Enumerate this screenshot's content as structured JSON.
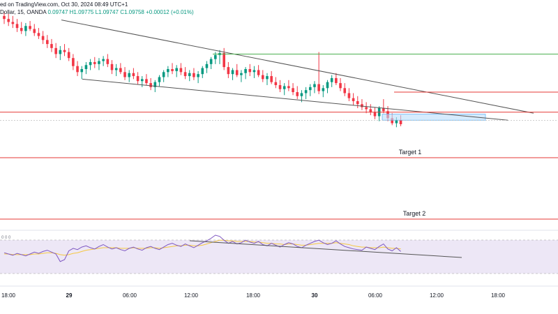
{
  "header": {
    "published": "ed on TradingView.com, Oct 30, 2024 08:49 UTC+1",
    "symbol": "Dollar, 15, OANDA",
    "open": "0.09747",
    "high": "H1.09775",
    "low": "L1.09747",
    "close": "C1.09758",
    "change": "+0.00012 (+0.01%)"
  },
  "colors": {
    "bull": "#089981",
    "bear": "#f23645",
    "trendline": "#555555",
    "resistance": "#4caf50",
    "level": "#e53935",
    "zone_fill": "#bbdefb",
    "rsi_band": "#ede7f6",
    "rsi_line": "#7e57c2",
    "rsi_ma": "#f5c842"
  },
  "chart_data": [
    {
      "type": "candlestick",
      "title": "",
      "x_axis_ticks": [
        "18:00",
        "29",
        "06:00",
        "12:00",
        "18:00",
        "30",
        "06:00",
        "12:00",
        "18:00"
      ],
      "annotations": [
        {
          "label": "Target 1",
          "kind": "horizontal-level"
        },
        {
          "label": "Target 2",
          "kind": "horizontal-level"
        }
      ],
      "series": [
        {
          "values": [
            [
              1.0998,
              1.1001,
              1.099,
              1.0995
            ],
            [
              1.0995,
              1.1,
              1.0988,
              1.0992
            ],
            [
              1.0992,
              1.0998,
              1.0986,
              1.099
            ],
            [
              1.099,
              1.0995,
              1.0982,
              1.0986
            ],
            [
              1.0986,
              1.0992,
              1.098,
              1.0983
            ],
            [
              1.0983,
              1.0991,
              1.0978,
              1.0988
            ],
            [
              1.0988,
              1.0993,
              1.0983,
              1.0985
            ],
            [
              1.0985,
              1.099,
              1.0978,
              1.0981
            ],
            [
              1.0981,
              1.0986,
              1.0975,
              1.0978
            ],
            [
              1.0978,
              1.0983,
              1.097,
              1.0974
            ],
            [
              1.0974,
              1.0979,
              1.0966,
              1.097
            ],
            [
              1.097,
              1.0975,
              1.0962,
              1.0966
            ],
            [
              1.0966,
              1.0971,
              1.0956,
              1.096
            ],
            [
              1.096,
              1.0968,
              1.0954,
              1.0964
            ],
            [
              1.0964,
              1.097,
              1.0958,
              1.0962
            ],
            [
              1.0962,
              1.0966,
              1.0953,
              1.0956
            ],
            [
              1.0956,
              1.096,
              1.0944,
              1.0948
            ],
            [
              1.0948,
              1.0953,
              1.0938,
              1.0942
            ],
            [
              1.0942,
              1.0948,
              1.0935,
              1.0945
            ],
            [
              1.0945,
              1.0952,
              1.094,
              1.0949
            ],
            [
              1.0949,
              1.0955,
              1.0944,
              1.0952
            ],
            [
              1.0952,
              1.0957,
              1.0946,
              1.095
            ],
            [
              1.095,
              1.0956,
              1.0944,
              1.0953
            ],
            [
              1.0953,
              1.0958,
              1.0948,
              1.0955
            ],
            [
              1.0955,
              1.096,
              1.0947,
              1.095
            ],
            [
              1.095,
              1.0954,
              1.094,
              1.0944
            ],
            [
              1.0944,
              1.095,
              1.0938,
              1.0946
            ],
            [
              1.0946,
              1.0951,
              1.094,
              1.0942
            ],
            [
              1.0942,
              1.0947,
              1.0934,
              1.0937
            ],
            [
              1.0937,
              1.0944,
              1.0932,
              1.0941
            ],
            [
              1.0941,
              1.0946,
              1.0935,
              1.0938
            ],
            [
              1.0938,
              1.0942,
              1.093,
              1.0933
            ],
            [
              1.0933,
              1.0938,
              1.0927,
              1.0935
            ],
            [
              1.0935,
              1.094,
              1.0929,
              1.0931
            ],
            [
              1.0931,
              1.0936,
              1.0924,
              1.0927
            ],
            [
              1.0927,
              1.0934,
              1.0922,
              1.0932
            ],
            [
              1.0932,
              1.0939,
              1.0928,
              1.0937
            ],
            [
              1.0937,
              1.0944,
              1.0932,
              1.0942
            ],
            [
              1.0942,
              1.0948,
              1.0937,
              1.0945
            ],
            [
              1.0945,
              1.0951,
              1.094,
              1.0943
            ],
            [
              1.0943,
              1.0949,
              1.0937,
              1.0946
            ],
            [
              1.0946,
              1.0951,
              1.0939,
              1.0942
            ],
            [
              1.0942,
              1.0947,
              1.0935,
              1.0938
            ],
            [
              1.0938,
              1.0944,
              1.0933,
              1.0941
            ],
            [
              1.0941,
              1.0946,
              1.0934,
              1.0937
            ],
            [
              1.0937,
              1.0943,
              1.0931,
              1.094
            ],
            [
              1.094,
              1.0948,
              1.0936,
              1.0946
            ],
            [
              1.0946,
              1.0953,
              1.0941,
              1.095
            ],
            [
              1.095,
              1.0957,
              1.0945,
              1.0955
            ],
            [
              1.0955,
              1.0962,
              1.095,
              1.0959
            ],
            [
              1.0959,
              1.0964,
              1.095,
              1.0961
            ],
            [
              1.0961,
              1.0966,
              1.0944,
              1.0947
            ],
            [
              1.0947,
              1.0952,
              1.0936,
              1.094
            ],
            [
              1.094,
              1.0946,
              1.0934,
              1.0944
            ],
            [
              1.0944,
              1.095,
              1.0937,
              1.0939
            ],
            [
              1.0939,
              1.0944,
              1.0932,
              1.0941
            ],
            [
              1.0941,
              1.0947,
              1.0935,
              1.0945
            ],
            [
              1.0945,
              1.095,
              1.0938,
              1.0942
            ],
            [
              1.0942,
              1.0948,
              1.0936,
              1.0944
            ],
            [
              1.0944,
              1.0949,
              1.0937,
              1.0939
            ],
            [
              1.0939,
              1.0944,
              1.0932,
              1.0935
            ],
            [
              1.0935,
              1.0941,
              1.0929,
              1.0938
            ],
            [
              1.0938,
              1.0943,
              1.093,
              1.0932
            ],
            [
              1.0932,
              1.0937,
              1.0926,
              1.0929
            ],
            [
              1.0929,
              1.0934,
              1.0922,
              1.0925
            ],
            [
              1.0925,
              1.0931,
              1.0919,
              1.0928
            ],
            [
              1.0928,
              1.0934,
              1.0923,
              1.0926
            ],
            [
              1.0926,
              1.0931,
              1.0919,
              1.0922
            ],
            [
              1.0922,
              1.0928,
              1.0915,
              1.0918
            ],
            [
              1.0918,
              1.0924,
              1.0912,
              1.0921
            ],
            [
              1.0921,
              1.0927,
              1.0915,
              1.0924
            ],
            [
              1.0924,
              1.093,
              1.0918,
              1.0927
            ],
            [
              1.0927,
              1.0933,
              1.0921,
              1.093
            ],
            [
              1.093,
              1.0962,
              1.092,
              1.0923
            ],
            [
              1.0923,
              1.0929,
              1.0917,
              1.0926
            ],
            [
              1.0926,
              1.0934,
              1.0921,
              1.0932
            ],
            [
              1.0932,
              1.0939,
              1.0927,
              1.0936
            ],
            [
              1.0936,
              1.0941,
              1.0929,
              1.0931
            ],
            [
              1.0931,
              1.0936,
              1.0923,
              1.0926
            ],
            [
              1.0926,
              1.0931,
              1.0918,
              1.0921
            ],
            [
              1.0921,
              1.0926,
              1.0913,
              1.0916
            ],
            [
              1.0916,
              1.0921,
              1.0909,
              1.0913
            ],
            [
              1.0913,
              1.0918,
              1.0906,
              1.091
            ],
            [
              1.091,
              1.0915,
              1.0904,
              1.0907
            ],
            [
              1.0907,
              1.0912,
              1.0901,
              1.0905
            ],
            [
              1.0905,
              1.091,
              1.0899,
              1.0902
            ],
            [
              1.0902,
              1.0907,
              1.0895,
              1.0898
            ],
            [
              1.0898,
              1.0908,
              1.0893,
              1.0906
            ],
            [
              1.0906,
              1.0915,
              1.0901,
              1.0903
            ],
            [
              1.0903,
              1.0908,
              1.0893,
              1.0896
            ],
            [
              1.0896,
              1.0901,
              1.0889,
              1.0891
            ],
            [
              1.0891,
              1.0897,
              1.0887,
              1.0894
            ],
            [
              1.0894,
              1.0899,
              1.0888,
              1.089
            ]
          ]
        }
      ]
    },
    {
      "type": "line",
      "title": "",
      "ylim": [
        0,
        100
      ],
      "series": [
        {
          "values": [
            42,
            40,
            38,
            41,
            39,
            37,
            40,
            43,
            41,
            44,
            46,
            43,
            40,
            28,
            31,
            45,
            49,
            47,
            51,
            53,
            50,
            48,
            52,
            55,
            51,
            48,
            50,
            47,
            45,
            49,
            51,
            48,
            46,
            50,
            52,
            49,
            47,
            51,
            55,
            57,
            54,
            52,
            56,
            53,
            50,
            54,
            58,
            61,
            65,
            70,
            68,
            62,
            57,
            60,
            56,
            58,
            62,
            59,
            57,
            60,
            55,
            53,
            57,
            54,
            51,
            55,
            58,
            56,
            52,
            50,
            54,
            57,
            60,
            62,
            58,
            55,
            57,
            61,
            56,
            52,
            50,
            48,
            47,
            46,
            51,
            49,
            47,
            52,
            56,
            48,
            45,
            50,
            44
          ]
        },
        {
          "values": [
            40,
            40,
            39,
            39,
            39,
            39,
            39,
            40,
            40,
            41,
            42,
            42,
            41,
            39,
            38,
            39,
            41,
            42,
            44,
            46,
            47,
            48,
            49,
            50,
            50,
            50,
            50,
            49,
            49,
            49,
            50,
            49,
            49,
            49,
            50,
            50,
            49,
            50,
            51,
            52,
            53,
            53,
            54,
            54,
            53,
            53,
            54,
            56,
            58,
            60,
            62,
            62,
            61,
            61,
            60,
            60,
            60,
            60,
            59,
            59,
            58,
            57,
            57,
            56,
            56,
            55,
            56,
            56,
            55,
            54,
            54,
            55,
            56,
            57,
            57,
            57,
            57,
            58,
            57,
            56,
            55,
            53,
            52,
            51,
            51,
            50,
            50,
            50,
            51,
            50,
            49,
            49,
            48
          ]
        }
      ]
    }
  ]
}
